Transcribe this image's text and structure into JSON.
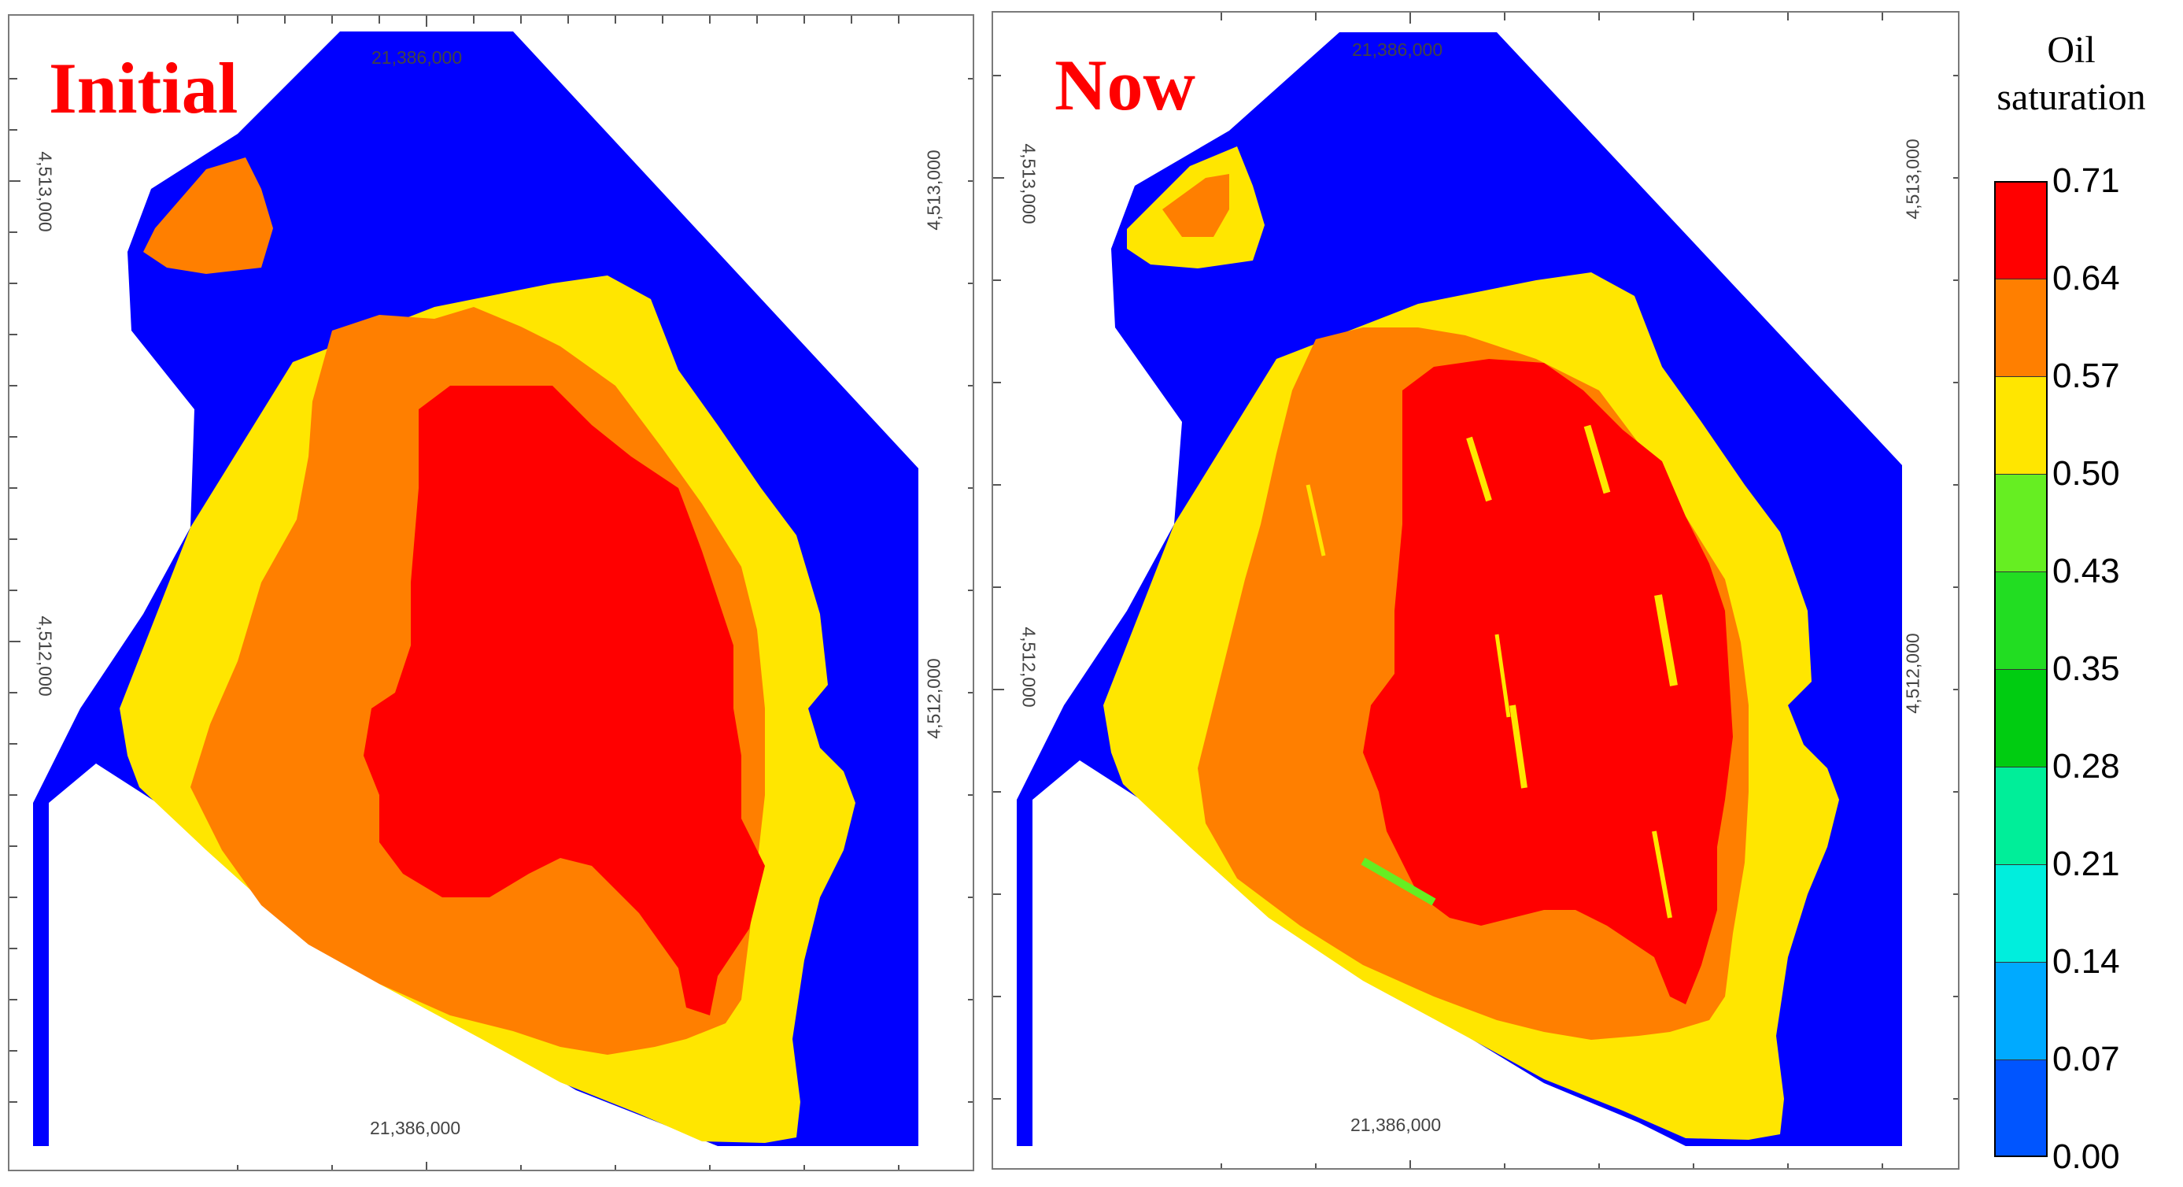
{
  "panels": [
    {
      "id": "initial",
      "title": "Initial",
      "coords": {
        "top": "21,386,000",
        "bottom": "21,386,000",
        "left_upper": "4,513,000",
        "left_lower": "4,512,000",
        "right_upper": "4,513,000",
        "right_lower": "4,512,000"
      }
    },
    {
      "id": "now",
      "title": "Now",
      "coords": {
        "top": "21,386,000",
        "bottom": "21,386,000",
        "left_upper": "4,513,000",
        "left_lower": "4,512,000",
        "right_upper": "4,513,000",
        "right_lower": "4,512,000"
      }
    }
  ],
  "legend": {
    "title_line1": "Oil",
    "title_line2": "saturation",
    "ticks": [
      "0.71",
      "0.64",
      "0.57",
      "0.50",
      "0.43",
      "0.35",
      "0.28",
      "0.21",
      "0.14",
      "0.07",
      "0.00"
    ],
    "colors": [
      "#ff0000",
      "#ff7f00",
      "#ffe600",
      "#66ee22",
      "#22dd22",
      "#00cc11",
      "#00ee99",
      "#00eedd",
      "#00aaff",
      "#0055ff",
      "#0000ff"
    ]
  },
  "colors": {
    "water": "#0000ff",
    "oil_high": "#ff0000",
    "oil_mid": "#ff7f00",
    "oil_low": "#ffe600",
    "oil_green": "#66ee22",
    "title": "#ff0000"
  }
}
